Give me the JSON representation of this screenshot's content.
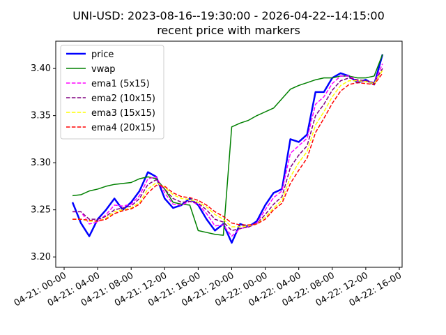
{
  "chart_data": {
    "type": "line",
    "title": "UNI-USD: 2023-08-16--19:30:00 - 2026-04-22--14:15:00",
    "subtitle": "recent price with markers",
    "x": [
      "04-21: 01-00",
      "04-21: 02-00",
      "04-21: 03-00",
      "04-21: 04-00",
      "04-21: 05-00",
      "04-21: 06-00",
      "04-21: 07-00",
      "04-21: 08-00",
      "04-21: 09-00",
      "04-21: 10-00",
      "04-21: 11-00",
      "04-21: 12-00",
      "04-21: 13-00",
      "04-21: 14-00",
      "04-21: 15-00",
      "04-21: 16-00",
      "04-21: 17-00",
      "04-21: 18-00",
      "04-21: 19-00",
      "04-21: 20-00",
      "04-21: 21-00",
      "04-21: 22-00",
      "04-21: 23-00",
      "04-22: 00-00",
      "04-22: 01-00",
      "04-22: 02-00",
      "04-22: 03-00",
      "04-22: 04-00",
      "04-22: 05-00",
      "04-22: 06-00",
      "04-22: 07-00",
      "04-22: 08-00",
      "04-22: 09-00",
      "04-22: 10-00",
      "04-22: 11-00",
      "04-22: 12-00",
      "04-22: 13-00",
      "04-22: 14-00"
    ],
    "series": [
      {
        "name": "price",
        "color": "#0000ff",
        "linewidth": 2.5,
        "dash": false,
        "values": [
          3.258,
          3.236,
          3.222,
          3.24,
          3.25,
          3.262,
          3.25,
          3.258,
          3.27,
          3.29,
          3.285,
          3.262,
          3.252,
          3.255,
          3.262,
          3.255,
          3.24,
          3.228,
          3.235,
          3.215,
          3.235,
          3.232,
          3.238,
          3.255,
          3.268,
          3.272,
          3.325,
          3.322,
          3.33,
          3.375,
          3.375,
          3.39,
          3.395,
          3.392,
          3.385,
          3.388,
          3.383,
          3.415
        ]
      },
      {
        "name": "vwap",
        "color": "#008000",
        "linewidth": 1.5,
        "dash": false,
        "values": [
          3.265,
          3.266,
          3.27,
          3.272,
          3.275,
          3.277,
          3.278,
          3.279,
          3.283,
          3.285,
          3.283,
          3.272,
          3.258,
          3.256,
          3.255,
          3.228,
          3.226,
          3.224,
          3.223,
          3.338,
          3.342,
          3.345,
          3.35,
          3.354,
          3.358,
          3.368,
          3.378,
          3.382,
          3.385,
          3.388,
          3.39,
          3.39,
          3.392,
          3.392,
          3.39,
          3.39,
          3.392,
          3.415
        ]
      },
      {
        "name": "ema1 (5x15)",
        "color": "#ff00ff",
        "linewidth": 1.5,
        "dash": true,
        "values": [
          3.248,
          3.248,
          3.235,
          3.237,
          3.245,
          3.255,
          3.254,
          3.256,
          3.265,
          3.283,
          3.285,
          3.268,
          3.256,
          3.255,
          3.259,
          3.256,
          3.246,
          3.233,
          3.234,
          3.222,
          3.23,
          3.232,
          3.236,
          3.25,
          3.263,
          3.27,
          3.31,
          3.318,
          3.326,
          3.362,
          3.37,
          3.384,
          3.392,
          3.392,
          3.387,
          3.387,
          3.385,
          3.405
        ]
      },
      {
        "name": "ema2 (10x15)",
        "color": "#800080",
        "linewidth": 1.5,
        "dash": true,
        "values": [
          3.248,
          3.248,
          3.24,
          3.24,
          3.243,
          3.25,
          3.252,
          3.254,
          3.262,
          3.277,
          3.282,
          3.272,
          3.262,
          3.258,
          3.259,
          3.257,
          3.25,
          3.24,
          3.237,
          3.228,
          3.23,
          3.232,
          3.235,
          3.245,
          3.256,
          3.264,
          3.295,
          3.308,
          3.318,
          3.35,
          3.362,
          3.377,
          3.387,
          3.39,
          3.388,
          3.387,
          3.385,
          3.4
        ]
      },
      {
        "name": "ema3 (15x15)",
        "color": "#ffff00",
        "linewidth": 1.5,
        "dash": true,
        "values": [
          3.24,
          3.24,
          3.238,
          3.238,
          3.241,
          3.248,
          3.25,
          3.252,
          3.258,
          3.272,
          3.279,
          3.274,
          3.266,
          3.262,
          3.261,
          3.258,
          3.253,
          3.245,
          3.24,
          3.232,
          3.232,
          3.233,
          3.235,
          3.242,
          3.252,
          3.26,
          3.285,
          3.3,
          3.312,
          3.34,
          3.354,
          3.37,
          3.382,
          3.387,
          3.387,
          3.386,
          3.384,
          3.398
        ]
      },
      {
        "name": "ema4 (20x15)",
        "color": "#ff0000",
        "linewidth": 1.5,
        "dash": true,
        "values": [
          3.24,
          3.24,
          3.239,
          3.238,
          3.24,
          3.246,
          3.249,
          3.251,
          3.256,
          3.268,
          3.276,
          3.275,
          3.268,
          3.264,
          3.263,
          3.26,
          3.255,
          3.248,
          3.243,
          3.236,
          3.234,
          3.234,
          3.235,
          3.24,
          3.25,
          3.257,
          3.278,
          3.292,
          3.305,
          3.332,
          3.347,
          3.363,
          3.376,
          3.383,
          3.385,
          3.384,
          3.383,
          3.395
        ]
      }
    ],
    "xlim": [
      "04-20: 23-00",
      "04-22: 16-20"
    ],
    "xticks": [
      "04-21: 00-00",
      "04-21: 04-00",
      "04-21: 08-00",
      "04-21: 12-00",
      "04-21: 16-00",
      "04-21: 20-00",
      "04-22: 00-00",
      "04-22: 04-00",
      "04-22: 08-00",
      "04-22: 12-00",
      "04-22: 16-00"
    ],
    "ylim": [
      3.189,
      3.429
    ],
    "yticks": [
      {
        "value": 3.2,
        "label": "3.20"
      },
      {
        "value": 3.25,
        "label": "3.25"
      },
      {
        "value": 3.3,
        "label": "3.30"
      },
      {
        "value": 3.35,
        "label": "3.35"
      },
      {
        "value": 3.4,
        "label": "3.40"
      }
    ],
    "grid": false,
    "legend": "upper left"
  }
}
